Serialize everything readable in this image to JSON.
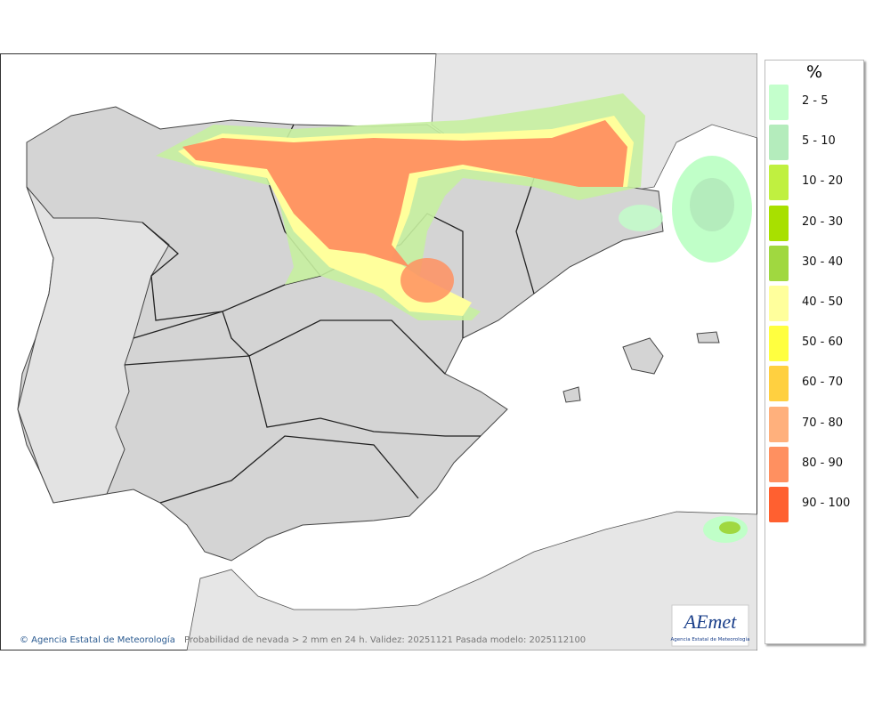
{
  "legend": {
    "title": "%",
    "items": [
      {
        "label": "2 - 5",
        "color": "#c4ffcc"
      },
      {
        "label": "5 - 10",
        "color": "#b4ecbc"
      },
      {
        "label": "10 - 20",
        "color": "#c0f040"
      },
      {
        "label": "20 - 30",
        "color": "#a8e000"
      },
      {
        "label": "30 - 40",
        "color": "#a0d840"
      },
      {
        "label": "40 - 50",
        "color": "#ffff9c"
      },
      {
        "label": "50 - 60",
        "color": "#ffff40"
      },
      {
        "label": "60 - 70",
        "color": "#ffd040"
      },
      {
        "label": "70 - 80",
        "color": "#ffb07c"
      },
      {
        "label": "80 - 90",
        "color": "#ff9060"
      },
      {
        "label": "90 - 100",
        "color": "#ff6030"
      }
    ]
  },
  "footer": {
    "copyright": "© Agencia Estatal de Meteorología",
    "caption": "Probabilidad de nevada > 2 mm en 24 h. Validez: 20251121 Pasada modelo: 2025112100"
  },
  "logo": {
    "name": "AEmet",
    "subtitle": "Agencia Estatal de Meteorología"
  }
}
